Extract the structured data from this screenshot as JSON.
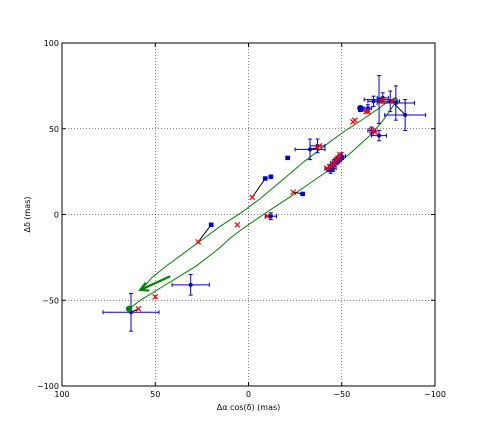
{
  "chart_data": {
    "type": "scatter",
    "xlabel": "Δα cos(δ) (mas)",
    "ylabel": "Δδ (mas)",
    "xlim": [
      100,
      -100
    ],
    "ylim": [
      -100,
      100
    ],
    "x_ticks": [
      100,
      50,
      0,
      -50,
      -100
    ],
    "y_ticks": [
      -100,
      -50,
      0,
      50,
      100
    ],
    "x_tick_labels": [
      "100",
      "50",
      "0",
      "−50",
      "−100"
    ],
    "y_tick_labels": [
      "−100",
      "−50",
      "0",
      "50",
      "100"
    ],
    "grid": true,
    "grid_style": "dotted",
    "colors": {
      "orbit": "#008000",
      "observed": "#0000cc",
      "predicted": "#ff0000",
      "residual": "#000000",
      "start_point": "#008000",
      "end_point": "#0000cc",
      "arrow": "#008000"
    },
    "orbit_path": [
      [
        64,
        -55
      ],
      [
        58,
        -50
      ],
      [
        52,
        -46
      ],
      [
        46,
        -42
      ],
      [
        40,
        -38
      ],
      [
        34,
        -34
      ],
      [
        28,
        -30
      ],
      [
        22,
        -25
      ],
      [
        16,
        -20
      ],
      [
        10,
        -14
      ],
      [
        4,
        -9
      ],
      [
        -4,
        -3
      ],
      [
        -12,
        3
      ],
      [
        -22,
        10
      ],
      [
        -34,
        19
      ],
      [
        -46,
        28
      ],
      [
        -56,
        37
      ],
      [
        -66,
        47
      ],
      [
        -73,
        56
      ],
      [
        -78,
        64
      ],
      [
        -80,
        67
      ],
      [
        -79,
        68
      ],
      [
        -75,
        66
      ],
      [
        -70,
        62
      ],
      [
        -62,
        56
      ],
      [
        -52,
        49
      ],
      [
        -42,
        41
      ],
      [
        -30,
        31
      ],
      [
        -18,
        20
      ],
      [
        -6,
        9
      ],
      [
        4,
        1
      ],
      [
        14,
        -6
      ],
      [
        24,
        -14
      ],
      [
        34,
        -22
      ],
      [
        44,
        -30
      ],
      [
        52,
        -37
      ],
      [
        56,
        -42
      ]
    ],
    "observed": [
      {
        "x": -50,
        "y": 34,
        "xerr": 2,
        "yerr": 2
      },
      {
        "x": -49,
        "y": 33,
        "xerr": 2,
        "yerr": 2
      },
      {
        "x": -48,
        "y": 32,
        "xerr": 2,
        "yerr": 2
      },
      {
        "x": -47,
        "y": 31,
        "xerr": 2,
        "yerr": 2
      },
      {
        "x": -46,
        "y": 30,
        "xerr": 2,
        "yerr": 2
      },
      {
        "x": -45,
        "y": 27,
        "xerr": 2,
        "yerr": 2
      },
      {
        "x": -44,
        "y": 26,
        "xerr": 2,
        "yerr": 2
      },
      {
        "x": -43,
        "y": 27,
        "xerr": 2,
        "yerr": 2
      },
      {
        "x": -37,
        "y": 40,
        "xerr": 4,
        "yerr": 4
      },
      {
        "x": -33,
        "y": 38,
        "xerr": 8,
        "yerr": 6
      },
      {
        "x": -21,
        "y": 33,
        "xerr": 1,
        "yerr": 1
      },
      {
        "x": -29,
        "y": 12,
        "xerr": 1,
        "yerr": 1
      },
      {
        "x": -12,
        "y": -1,
        "xerr": 3,
        "yerr": 2
      },
      {
        "x": -9,
        "y": 21,
        "xerr": 1,
        "yerr": 1
      },
      {
        "x": -12,
        "y": 22,
        "xerr": 1,
        "yerr": 1
      },
      {
        "x": 20,
        "y": -6,
        "xerr": 1,
        "yerr": 1
      },
      {
        "x": 31,
        "y": -41,
        "xerr": 10,
        "yerr": 6
      },
      {
        "x": 63,
        "y": -57,
        "xerr": 15,
        "yerr": 11
      },
      {
        "x": -60,
        "y": 61,
        "xerr": 1,
        "yerr": 1
      },
      {
        "x": -64,
        "y": 62,
        "xerr": 2,
        "yerr": 2
      },
      {
        "x": -67,
        "y": 66,
        "xerr": 3,
        "yerr": 3
      },
      {
        "x": -70,
        "y": 67,
        "xerr": 8,
        "yerr": 14
      },
      {
        "x": -72,
        "y": 68,
        "xerr": 3,
        "yerr": 3
      },
      {
        "x": -76,
        "y": 66,
        "xerr": 5,
        "yerr": 6
      },
      {
        "x": -79,
        "y": 65,
        "xerr": 10,
        "yerr": 10
      },
      {
        "x": -84,
        "y": 58,
        "xerr": 11,
        "yerr": 9
      },
      {
        "x": -66,
        "y": 49,
        "xerr": 2,
        "yerr": 2
      },
      {
        "x": -70,
        "y": 46,
        "xerr": 4,
        "yerr": 3
      }
    ],
    "predicted": [
      {
        "x": -49,
        "y": 35
      },
      {
        "x": -48,
        "y": 33
      },
      {
        "x": -47,
        "y": 32
      },
      {
        "x": -46,
        "y": 30
      },
      {
        "x": -45,
        "y": 29
      },
      {
        "x": -44,
        "y": 28
      },
      {
        "x": -42,
        "y": 27
      },
      {
        "x": -38,
        "y": 40
      },
      {
        "x": -37,
        "y": 39
      },
      {
        "x": -24,
        "y": 13
      },
      {
        "x": -10,
        "y": -1
      },
      {
        "x": 6,
        "y": -6
      },
      {
        "x": -2,
        "y": 10
      },
      {
        "x": 27,
        "y": -16
      },
      {
        "x": 50,
        "y": -48
      },
      {
        "x": 59,
        "y": -55
      },
      {
        "x": -56,
        "y": 54
      },
      {
        "x": -57,
        "y": 55
      },
      {
        "x": -63,
        "y": 60
      },
      {
        "x": -64,
        "y": 60
      },
      {
        "x": -71,
        "y": 66
      },
      {
        "x": -72,
        "y": 67
      },
      {
        "x": -77,
        "y": 66
      },
      {
        "x": -66,
        "y": 49
      },
      {
        "x": -68,
        "y": 48
      }
    ],
    "start_point": {
      "x": 64,
      "y": -55
    },
    "end_point": {
      "x": -60,
      "y": 62
    },
    "arrow": {
      "x1": 42,
      "y1": -36,
      "x2": 58,
      "y2": -44
    }
  }
}
